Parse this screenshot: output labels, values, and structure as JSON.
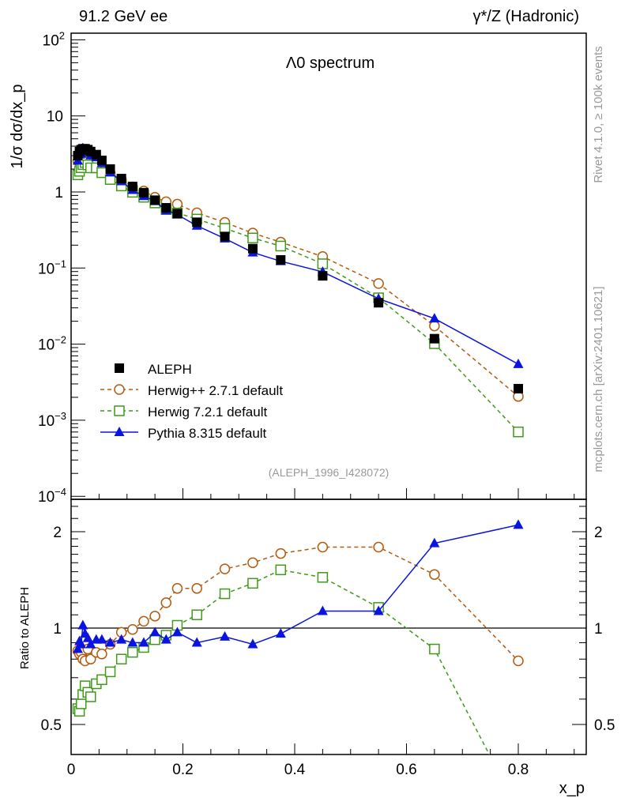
{
  "chart_data": {
    "type": "line",
    "title": "Λ0 spectrum",
    "top_left_label": "91.2 GeV ee",
    "top_right_label": "γ*/Z (Hadronic)",
    "ylabel": "1/σ dσ/dx_p",
    "xlabel": "x_p",
    "ratio_ylabel": "Ratio to ALEPH",
    "side_label_rivet": "Rivet 4.1.0, ≥ 100k events",
    "side_label_mcplots": "mcplots.cern.ch [arXiv:2401.10621]",
    "analysis_label": "(ALEPH_1996_I428072)",
    "xlim": [
      0,
      0.92
    ],
    "ylim": [
      0.0001,
      120
    ],
    "yscale": "log",
    "ratio_ylim": [
      0.4,
      2.5
    ],
    "x_ticks": [
      "0",
      "0.2",
      "0.4",
      "0.6",
      "0.8"
    ],
    "y_ticks": [
      "10^2",
      "10",
      "1",
      "10^-1",
      "10^-2",
      "10^-3",
      "10^-4"
    ],
    "ratio_ticks": [
      "0.5",
      "1",
      "2"
    ],
    "legend_position": "bottom-left",
    "x": [
      0.012,
      0.015,
      0.018,
      0.021,
      0.025,
      0.03,
      0.035,
      0.045,
      0.055,
      0.07,
      0.09,
      0.11,
      0.13,
      0.15,
      0.17,
      0.19,
      0.225,
      0.275,
      0.325,
      0.375,
      0.45,
      0.55,
      0.65,
      0.8
    ],
    "data": {
      "name": "ALEPH",
      "color": "#000000",
      "values": [
        3.0,
        3.4,
        3.6,
        3.7,
        3.7,
        3.6,
        3.4,
        3.1,
        2.6,
        2.0,
        1.5,
        1.18,
        0.98,
        0.78,
        0.62,
        0.52,
        0.4,
        0.26,
        0.18,
        0.128,
        0.079,
        0.035,
        0.0118,
        0.0026
      ]
    },
    "series": [
      {
        "name": "Herwig++ 2.7.1 default",
        "color": "#b35a0f",
        "marker": "circle",
        "dash": true,
        "ratio": [
          0.85,
          0.83,
          0.84,
          0.8,
          0.79,
          0.86,
          0.8,
          0.84,
          0.83,
          0.89,
          0.97,
          0.99,
          1.05,
          1.09,
          1.2,
          1.33,
          1.33,
          1.53,
          1.6,
          1.71,
          1.79,
          1.79,
          1.47,
          0.79
        ]
      },
      {
        "name": "Herwig 7.2.1 default",
        "color": "#3f9a1a",
        "marker": "square",
        "dash": true,
        "ratio": [
          0.56,
          0.55,
          0.58,
          0.62,
          0.66,
          0.63,
          0.61,
          0.67,
          0.69,
          0.73,
          0.8,
          0.84,
          0.87,
          0.92,
          0.95,
          1.02,
          1.1,
          1.28,
          1.38,
          1.52,
          1.44,
          1.16,
          0.86,
          0.27
        ]
      },
      {
        "name": "Pythia 8.315 default",
        "color": "#0a14e0",
        "marker": "triangle",
        "dash": false,
        "ratio": [
          0.86,
          0.91,
          0.89,
          1.02,
          0.96,
          0.93,
          0.89,
          0.92,
          0.92,
          0.9,
          0.92,
          0.9,
          0.9,
          0.97,
          0.92,
          0.97,
          0.9,
          0.94,
          0.89,
          0.96,
          1.13,
          1.13,
          1.84,
          2.1
        ]
      }
    ]
  }
}
